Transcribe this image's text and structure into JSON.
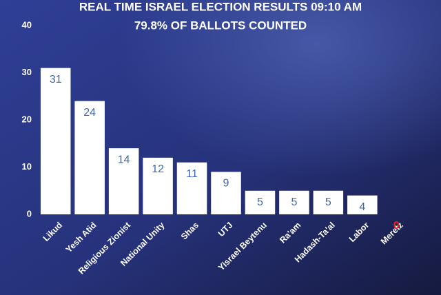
{
  "chart_data": {
    "type": "bar",
    "title": "REAL TIME ISRAEL ELECTION RESULTS 09:10 AM",
    "subtitle": "79.8% OF BALLOTS COUNTED",
    "categories": [
      "Likud",
      "Yesh Atid",
      "Religious Zionist",
      "National Unity",
      "Shas",
      "UTJ",
      "Yisrael Beytenu",
      "Ra'am",
      "Hadash-Ta'al",
      "Labor",
      "Meretz"
    ],
    "values": [
      31,
      24,
      14,
      12,
      11,
      9,
      5,
      5,
      5,
      4,
      0
    ],
    "color": "#ffffff",
    "value_label_color": "#3d67b0",
    "zero_label_color": "#e8231c",
    "ylim": [
      0,
      40
    ],
    "yticks": [
      0,
      10,
      20,
      30,
      40
    ],
    "grid": false
  }
}
